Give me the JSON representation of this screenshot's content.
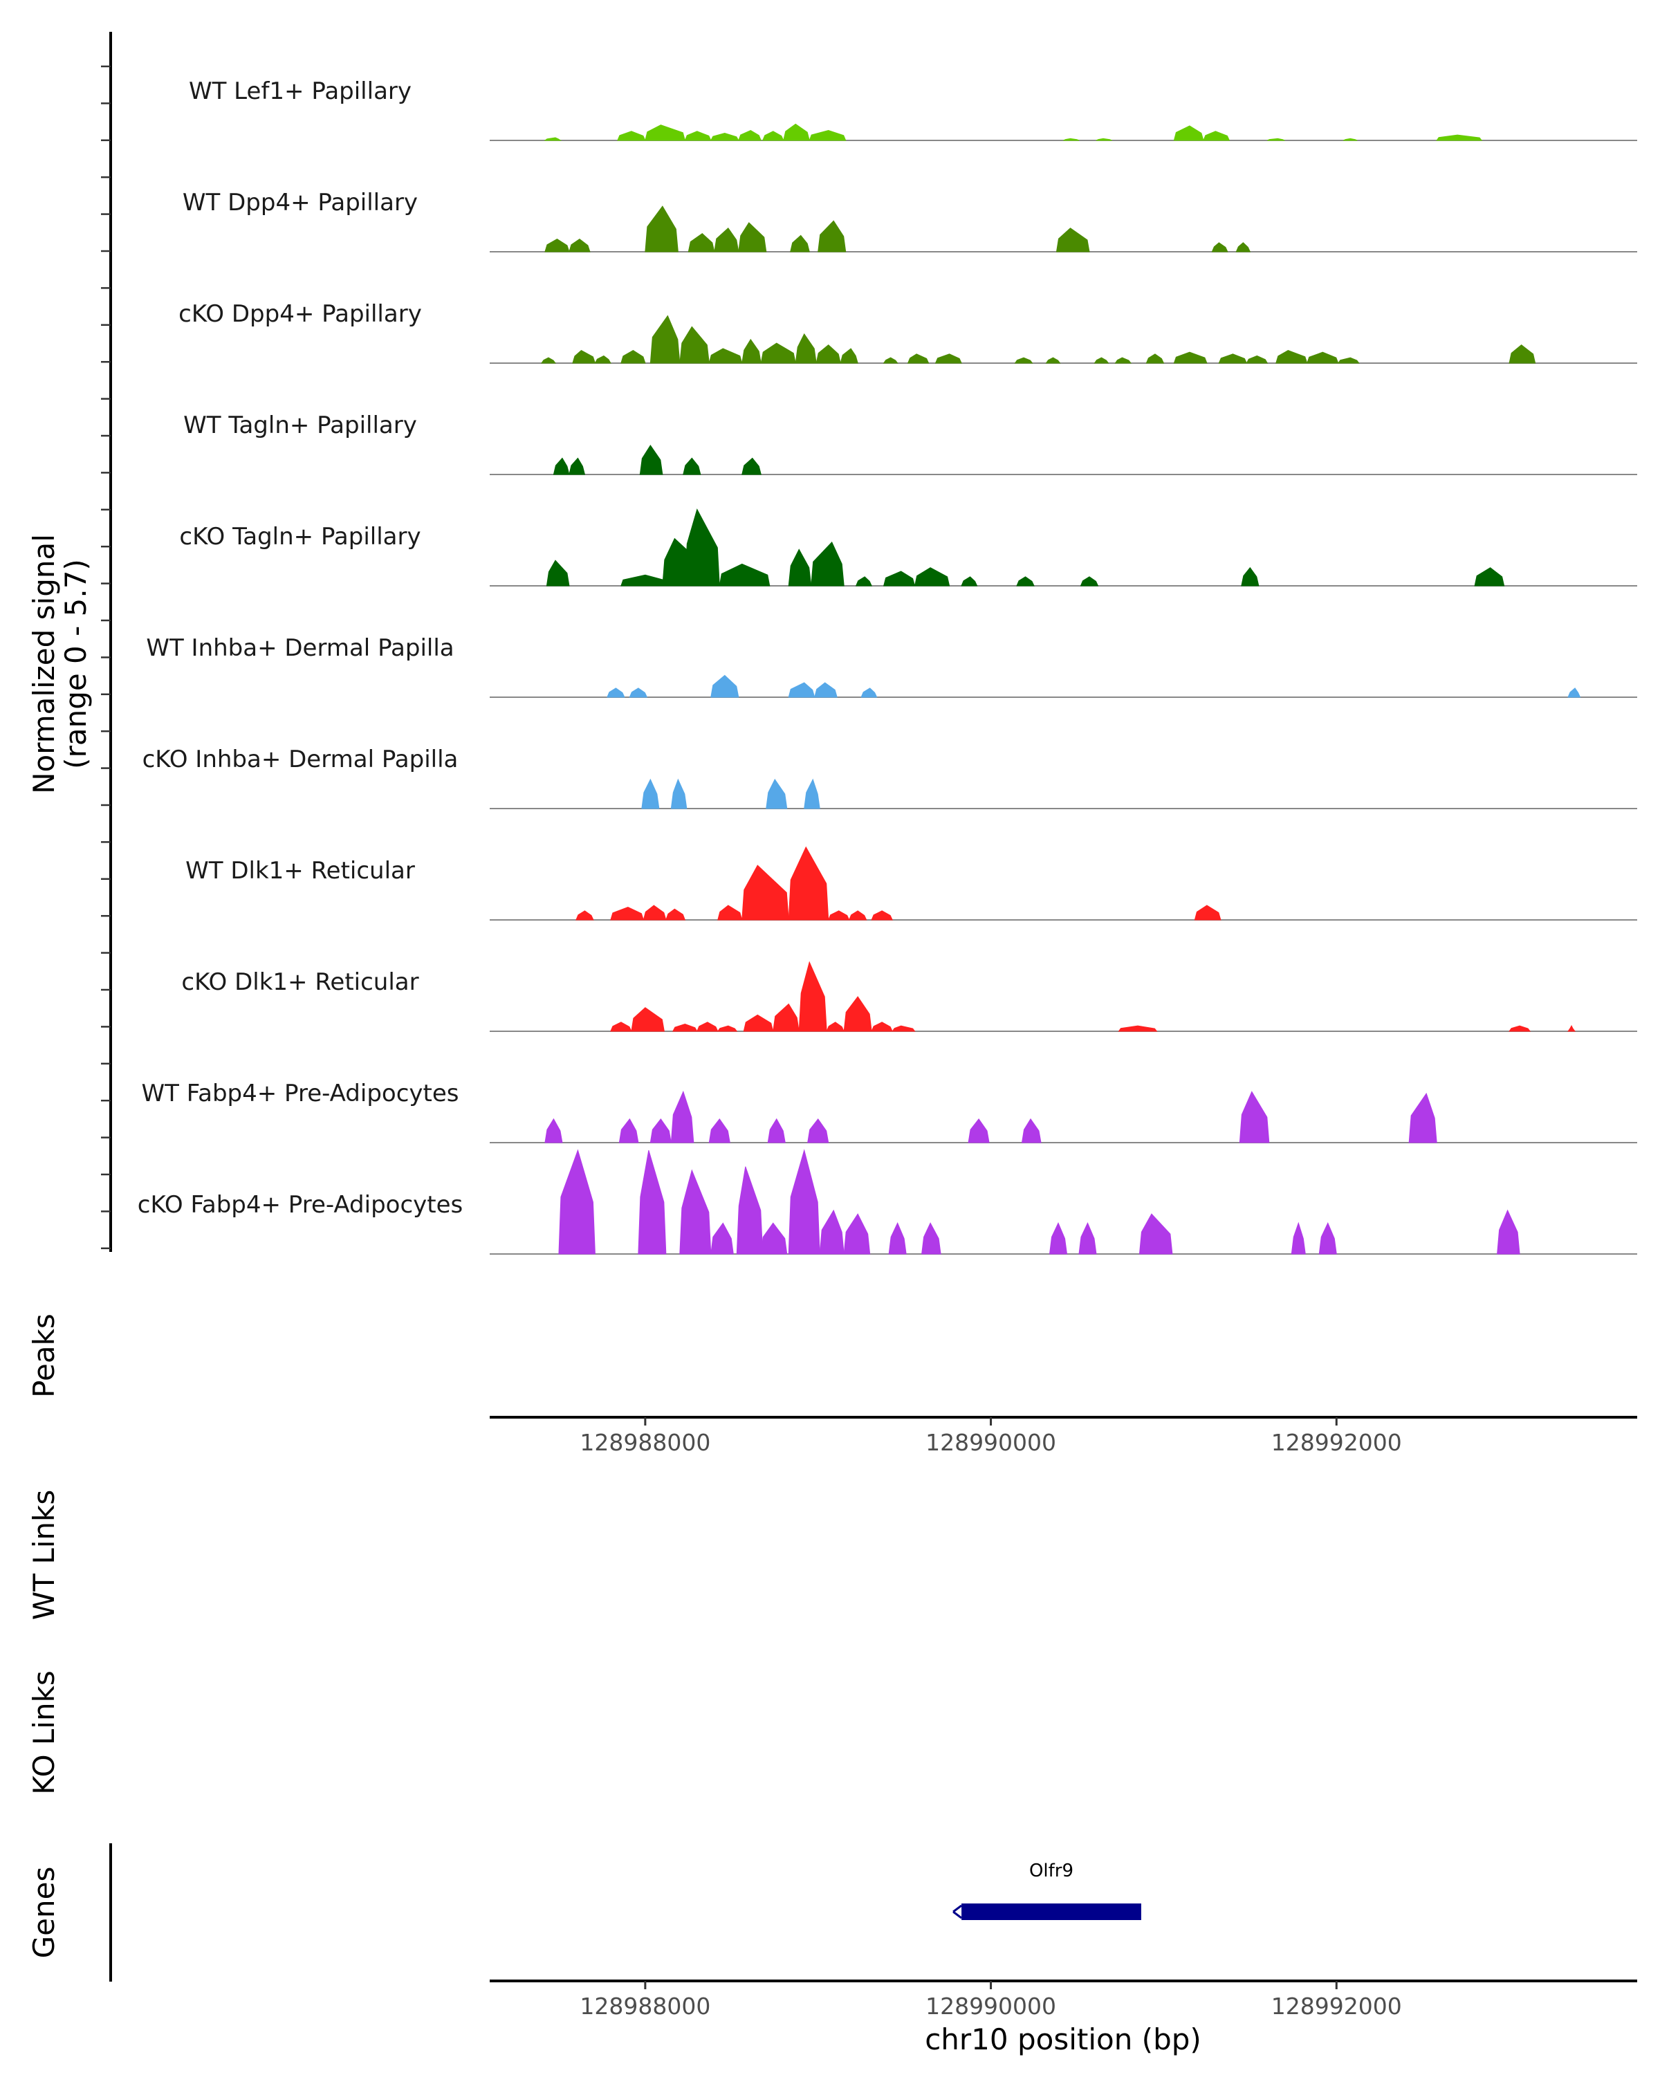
{
  "chart_data": {
    "type": "area",
    "title": "",
    "ylabel_line1": "Normalized signal",
    "ylabel_line2": "(range 0 - 5.7)",
    "ylim": [
      0,
      5.7
    ],
    "xlabel": "chr10 position (bp)",
    "xlim": [
      128987100,
      128993740
    ],
    "xticks": [
      128988000,
      128990000,
      128992000
    ],
    "xtick_labels": [
      "128988000",
      "128990000",
      "128992000"
    ],
    "tracks": [
      {
        "name": "WT Lef1+ Papillary",
        "color": "#66cc00",
        "peaks": [
          [
            128987420,
            128987480,
            128987510,
            0.15
          ],
          [
            128987840,
            128987920,
            128988000,
            0.5
          ],
          [
            128988000,
            128988090,
            128988230,
            0.85
          ],
          [
            128988230,
            128988300,
            128988380,
            0.5
          ],
          [
            128988380,
            128988460,
            128988540,
            0.4
          ],
          [
            128988540,
            128988610,
            128988670,
            0.55
          ],
          [
            128988680,
            128988740,
            128988800,
            0.5
          ],
          [
            128988800,
            128988870,
            128988950,
            0.9
          ],
          [
            128988950,
            128989060,
            128989160,
            0.55
          ],
          [
            128990420,
            128990460,
            128990510,
            0.1
          ],
          [
            128990610,
            128990650,
            128990700,
            0.1
          ],
          [
            128991060,
            128991150,
            128991230,
            0.8
          ],
          [
            128991230,
            128991300,
            128991380,
            0.5
          ],
          [
            128991600,
            128991660,
            128991700,
            0.1
          ],
          [
            128992040,
            128992080,
            128992120,
            0.1
          ],
          [
            128992580,
            128992700,
            128992840,
            0.3
          ]
        ]
      },
      {
        "name": "WT Dpp4+ Papillary",
        "color": "#4a8a00",
        "peaks": [
          [
            128987420,
            128987490,
            128987560,
            0.7
          ],
          [
            128987560,
            128987620,
            128987680,
            0.7
          ],
          [
            128988000,
            128988100,
            128988190,
            2.5
          ],
          [
            128988250,
            128988330,
            128988400,
            1.0
          ],
          [
            128988400,
            128988480,
            128988540,
            1.3
          ],
          [
            128988540,
            128988600,
            128988700,
            1.6
          ],
          [
            128988840,
            128988900,
            128988950,
            0.9
          ],
          [
            128989000,
            128989090,
            128989160,
            1.7
          ],
          [
            128990380,
            128990460,
            128990570,
            1.3
          ],
          [
            128991280,
            128991320,
            128991370,
            0.5
          ],
          [
            128991420,
            128991460,
            128991500,
            0.5
          ]
        ]
      },
      {
        "name": "cKO Dpp4+ Papillary",
        "color": "#4a8a00",
        "peaks": [
          [
            128987400,
            128987440,
            128987480,
            0.3
          ],
          [
            128987580,
            128987630,
            128987710,
            0.7
          ],
          [
            128987710,
            128987760,
            128987800,
            0.4
          ],
          [
            128987860,
            128987930,
            128988000,
            0.7
          ],
          [
            128988030,
            128988130,
            128988200,
            2.6
          ],
          [
            128988200,
            128988270,
            128988370,
            2.0
          ],
          [
            128988370,
            128988450,
            128988560,
            0.8
          ],
          [
            128988560,
            128988610,
            128988670,
            1.3
          ],
          [
            128988670,
            128988760,
            128988870,
            1.1
          ],
          [
            128988870,
            128988920,
            128988990,
            1.6
          ],
          [
            128988990,
            128989060,
            128989130,
            1.0
          ],
          [
            128989130,
            128989190,
            128989230,
            0.8
          ],
          [
            128989380,
            128989420,
            128989460,
            0.3
          ],
          [
            128989520,
            128989570,
            128989640,
            0.5
          ],
          [
            128989680,
            128989760,
            128989830,
            0.5
          ],
          [
            128990140,
            128990190,
            128990240,
            0.3
          ],
          [
            128990320,
            128990360,
            128990400,
            0.3
          ],
          [
            128990600,
            128990640,
            128990680,
            0.3
          ],
          [
            128990720,
            128990760,
            128990810,
            0.3
          ],
          [
            128990900,
            128990950,
            128991000,
            0.5
          ],
          [
            128991060,
            128991150,
            128991250,
            0.6
          ],
          [
            128991320,
            128991400,
            128991480,
            0.5
          ],
          [
            128991480,
            128991540,
            128991600,
            0.4
          ],
          [
            128991650,
            128991720,
            128991830,
            0.7
          ],
          [
            128991830,
            128991920,
            128992010,
            0.6
          ],
          [
            128992010,
            128992080,
            128992130,
            0.3
          ],
          [
            128993000,
            128993070,
            128993150,
            1.0
          ]
        ]
      },
      {
        "name": "WT Tagln+ Papillary",
        "color": "#006400",
        "peaks": [
          [
            128987470,
            128987520,
            128987560,
            0.9
          ],
          [
            128987560,
            128987610,
            128987650,
            0.9
          ],
          [
            128987970,
            128988030,
            128988100,
            1.6
          ],
          [
            128988220,
            128988270,
            128988320,
            0.9
          ],
          [
            128988560,
            128988620,
            128988670,
            0.9
          ]
        ]
      },
      {
        "name": "cKO Tagln+ Papillary",
        "color": "#006400",
        "peaks": [
          [
            128987430,
            128987480,
            128987560,
            1.4
          ],
          [
            128987860,
            128988000,
            128988130,
            0.6
          ],
          [
            128988100,
            128988170,
            128988330,
            2.6
          ],
          [
            128988230,
            128988300,
            128988430,
            4.2
          ],
          [
            128988430,
            128988560,
            128988720,
            1.2
          ],
          [
            128988830,
            128988890,
            128988960,
            2.0
          ],
          [
            128988960,
            128989080,
            128989150,
            2.4
          ],
          [
            128989220,
            128989270,
            128989310,
            0.5
          ],
          [
            128989380,
            128989480,
            128989560,
            0.8
          ],
          [
            128989560,
            128989650,
            128989760,
            1.0
          ],
          [
            128989830,
            128989880,
            128989920,
            0.5
          ],
          [
            128990150,
            128990200,
            128990250,
            0.5
          ],
          [
            128990520,
            128990570,
            128990620,
            0.5
          ],
          [
            128991450,
            128991500,
            128991550,
            1.0
          ],
          [
            128992800,
            128992890,
            128992970,
            1.0
          ]
        ]
      },
      {
        "name": "WT Inhba+ Dermal Papilla",
        "color": "#56a8e8",
        "peaks": [
          [
            128987780,
            128987830,
            128987880,
            0.5
          ],
          [
            128987910,
            128987960,
            128988010,
            0.5
          ],
          [
            128988380,
            128988460,
            128988540,
            1.2
          ],
          [
            128988830,
            128988920,
            128988980,
            0.8
          ],
          [
            128988980,
            128989040,
            128989110,
            0.8
          ],
          [
            128989250,
            128989300,
            128989340,
            0.5
          ],
          [
            128993340,
            128993380,
            128993410,
            0.5
          ]
        ]
      },
      {
        "name": "cKO Inhba+ Dermal Papilla",
        "color": "#56a8e8",
        "peaks": [
          [
            128987980,
            128988030,
            128988080,
            1.6
          ],
          [
            128988150,
            128988190,
            128988240,
            1.6
          ],
          [
            128988700,
            128988750,
            128988820,
            1.6
          ],
          [
            128988920,
            128988970,
            128989010,
            1.6
          ]
        ]
      },
      {
        "name": "WT Dlk1+ Reticular",
        "color": "#ff2020",
        "peaks": [
          [
            128987600,
            128987650,
            128987700,
            0.5
          ],
          [
            128987800,
            128987900,
            128987990,
            0.7
          ],
          [
            128987990,
            128988050,
            128988120,
            0.8
          ],
          [
            128988120,
            128988170,
            128988230,
            0.6
          ],
          [
            128988420,
            128988480,
            128988560,
            0.8
          ],
          [
            128988560,
            128988650,
            128988830,
            3.0
          ],
          [
            128988830,
            128988930,
            128989060,
            4.0
          ],
          [
            128989060,
            128989120,
            128989180,
            0.5
          ],
          [
            128989180,
            128989230,
            128989280,
            0.5
          ],
          [
            128989310,
            128989370,
            128989430,
            0.5
          ],
          [
            128991180,
            128991250,
            128991330,
            0.8
          ]
        ]
      },
      {
        "name": "cKO Dlk1+ Reticular",
        "color": "#ff2020",
        "peaks": [
          [
            128987800,
            128987860,
            128987920,
            0.5
          ],
          [
            128987920,
            128988000,
            128988110,
            1.3
          ],
          [
            128988160,
            128988230,
            128988300,
            0.4
          ],
          [
            128988300,
            128988360,
            128988420,
            0.5
          ],
          [
            128988420,
            128988480,
            128988530,
            0.3
          ],
          [
            128988570,
            128988650,
            128988740,
            0.9
          ],
          [
            128988740,
            128988830,
            128988890,
            1.5
          ],
          [
            128988890,
            128988950,
            128989050,
            3.8
          ],
          [
            128989050,
            128989100,
            128989150,
            0.5
          ],
          [
            128989150,
            128989230,
            128989310,
            1.9
          ],
          [
            128989310,
            128989370,
            128989430,
            0.5
          ],
          [
            128989430,
            128989480,
            128989560,
            0.3
          ],
          [
            128990740,
            128990850,
            128990960,
            0.3
          ],
          [
            128993000,
            128993060,
            128993120,
            0.3
          ],
          [
            128993340,
            128993360,
            128993380,
            0.3
          ]
        ]
      },
      {
        "name": "WT Fabp4+ Pre-Adipocytes",
        "color": "#b03ae8",
        "peaks": [
          [
            128987420,
            128987470,
            128987520,
            1.3
          ],
          [
            128987850,
            128987910,
            128987960,
            1.3
          ],
          [
            128988030,
            128988090,
            128988150,
            1.3
          ],
          [
            128988150,
            128988220,
            128988280,
            2.8
          ],
          [
            128988370,
            128988430,
            128988490,
            1.3
          ],
          [
            128988710,
            128988760,
            128988810,
            1.3
          ],
          [
            128988940,
            128989000,
            128989060,
            1.3
          ],
          [
            128989870,
            128989930,
            128989990,
            1.3
          ],
          [
            128990180,
            128990230,
            128990290,
            1.3
          ],
          [
            128991440,
            128991510,
            128991610,
            2.8
          ],
          [
            128992420,
            128992520,
            128992580,
            2.7
          ]
        ]
      },
      {
        "name": "cKO Fabp4+ Pre-Adipocytes",
        "color": "#b03ae8",
        "peaks": [
          [
            128987500,
            128987610,
            128987710,
            5.7
          ],
          [
            128987960,
            128988020,
            128988120,
            5.7
          ],
          [
            128988200,
            128988270,
            128988380,
            4.6
          ],
          [
            128988380,
            128988450,
            128988510,
            1.7
          ],
          [
            128988530,
            128988580,
            128988680,
            4.8
          ],
          [
            128988670,
            128988740,
            128988820,
            1.7
          ],
          [
            128988830,
            128988920,
            128989010,
            5.7
          ],
          [
            128989010,
            128989090,
            128989150,
            2.4
          ],
          [
            128989150,
            128989230,
            128989300,
            2.2
          ],
          [
            128989410,
            128989460,
            128989510,
            1.7
          ],
          [
            128989600,
            128989650,
            128989710,
            1.7
          ],
          [
            128990340,
            128990390,
            128990440,
            1.7
          ],
          [
            128990510,
            128990560,
            128990610,
            1.7
          ],
          [
            128990860,
            128990930,
            128991050,
            2.2
          ],
          [
            128991740,
            128991780,
            128991820,
            1.7
          ],
          [
            128991900,
            128991950,
            128992000,
            1.7
          ],
          [
            128992930,
            128992990,
            128993060,
            2.4
          ]
        ]
      }
    ],
    "panels": {
      "peaks_label": "Peaks",
      "wt_links_label": "WT Links",
      "ko_links_label": "KO Links",
      "genes_label": "Genes"
    },
    "genes": [
      {
        "name": "Olfr9",
        "start": 128989830,
        "end": 128990870,
        "strand": "-",
        "color": "#00008b"
      }
    ]
  }
}
